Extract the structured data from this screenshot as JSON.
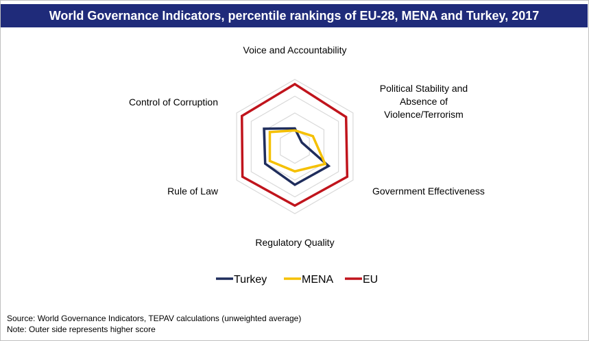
{
  "title": "World Governance Indicators, percentile rankings of EU-28, MENA and Turkey, 2017",
  "footer": {
    "source": "Source: World Governance Indicators,  TEPAV calculations  (unweighted average)",
    "note": "Note: Outer side represents  higher score"
  },
  "chart_data": {
    "type": "radar",
    "title": "World Governance Indicators, percentile rankings of EU-28, MENA and Turkey, 2017",
    "axes": [
      "Voice and Accountability",
      "Political Stability and Absence of Violence/Terrorism",
      "Government Effectiveness",
      "Regulatory Quality",
      "Rule of Law",
      "Control of Corruption"
    ],
    "axis_label_lines": [
      [
        "Voice and Accountability"
      ],
      [
        "Political Stability and",
        "Absence of",
        "Violence/Terrorism"
      ],
      [
        "Government Effectiveness"
      ],
      [
        "Regulatory Quality"
      ],
      [
        "Rule of Law"
      ],
      [
        "Control of Corruption"
      ]
    ],
    "rlim": [
      0,
      100
    ],
    "grid": true,
    "legend_position": "bottom",
    "series": [
      {
        "name": "Turkey",
        "color": "#1f2d5c",
        "values": [
          27,
          12,
          58,
          57,
          51,
          53
        ]
      },
      {
        "name": "MENA",
        "color": "#f5c000",
        "values": [
          24,
          31,
          52,
          37,
          43,
          43
        ]
      },
      {
        "name": "EU",
        "color": "#c0141c",
        "values": [
          93,
          88,
          90,
          88,
          90,
          91
        ]
      }
    ]
  }
}
